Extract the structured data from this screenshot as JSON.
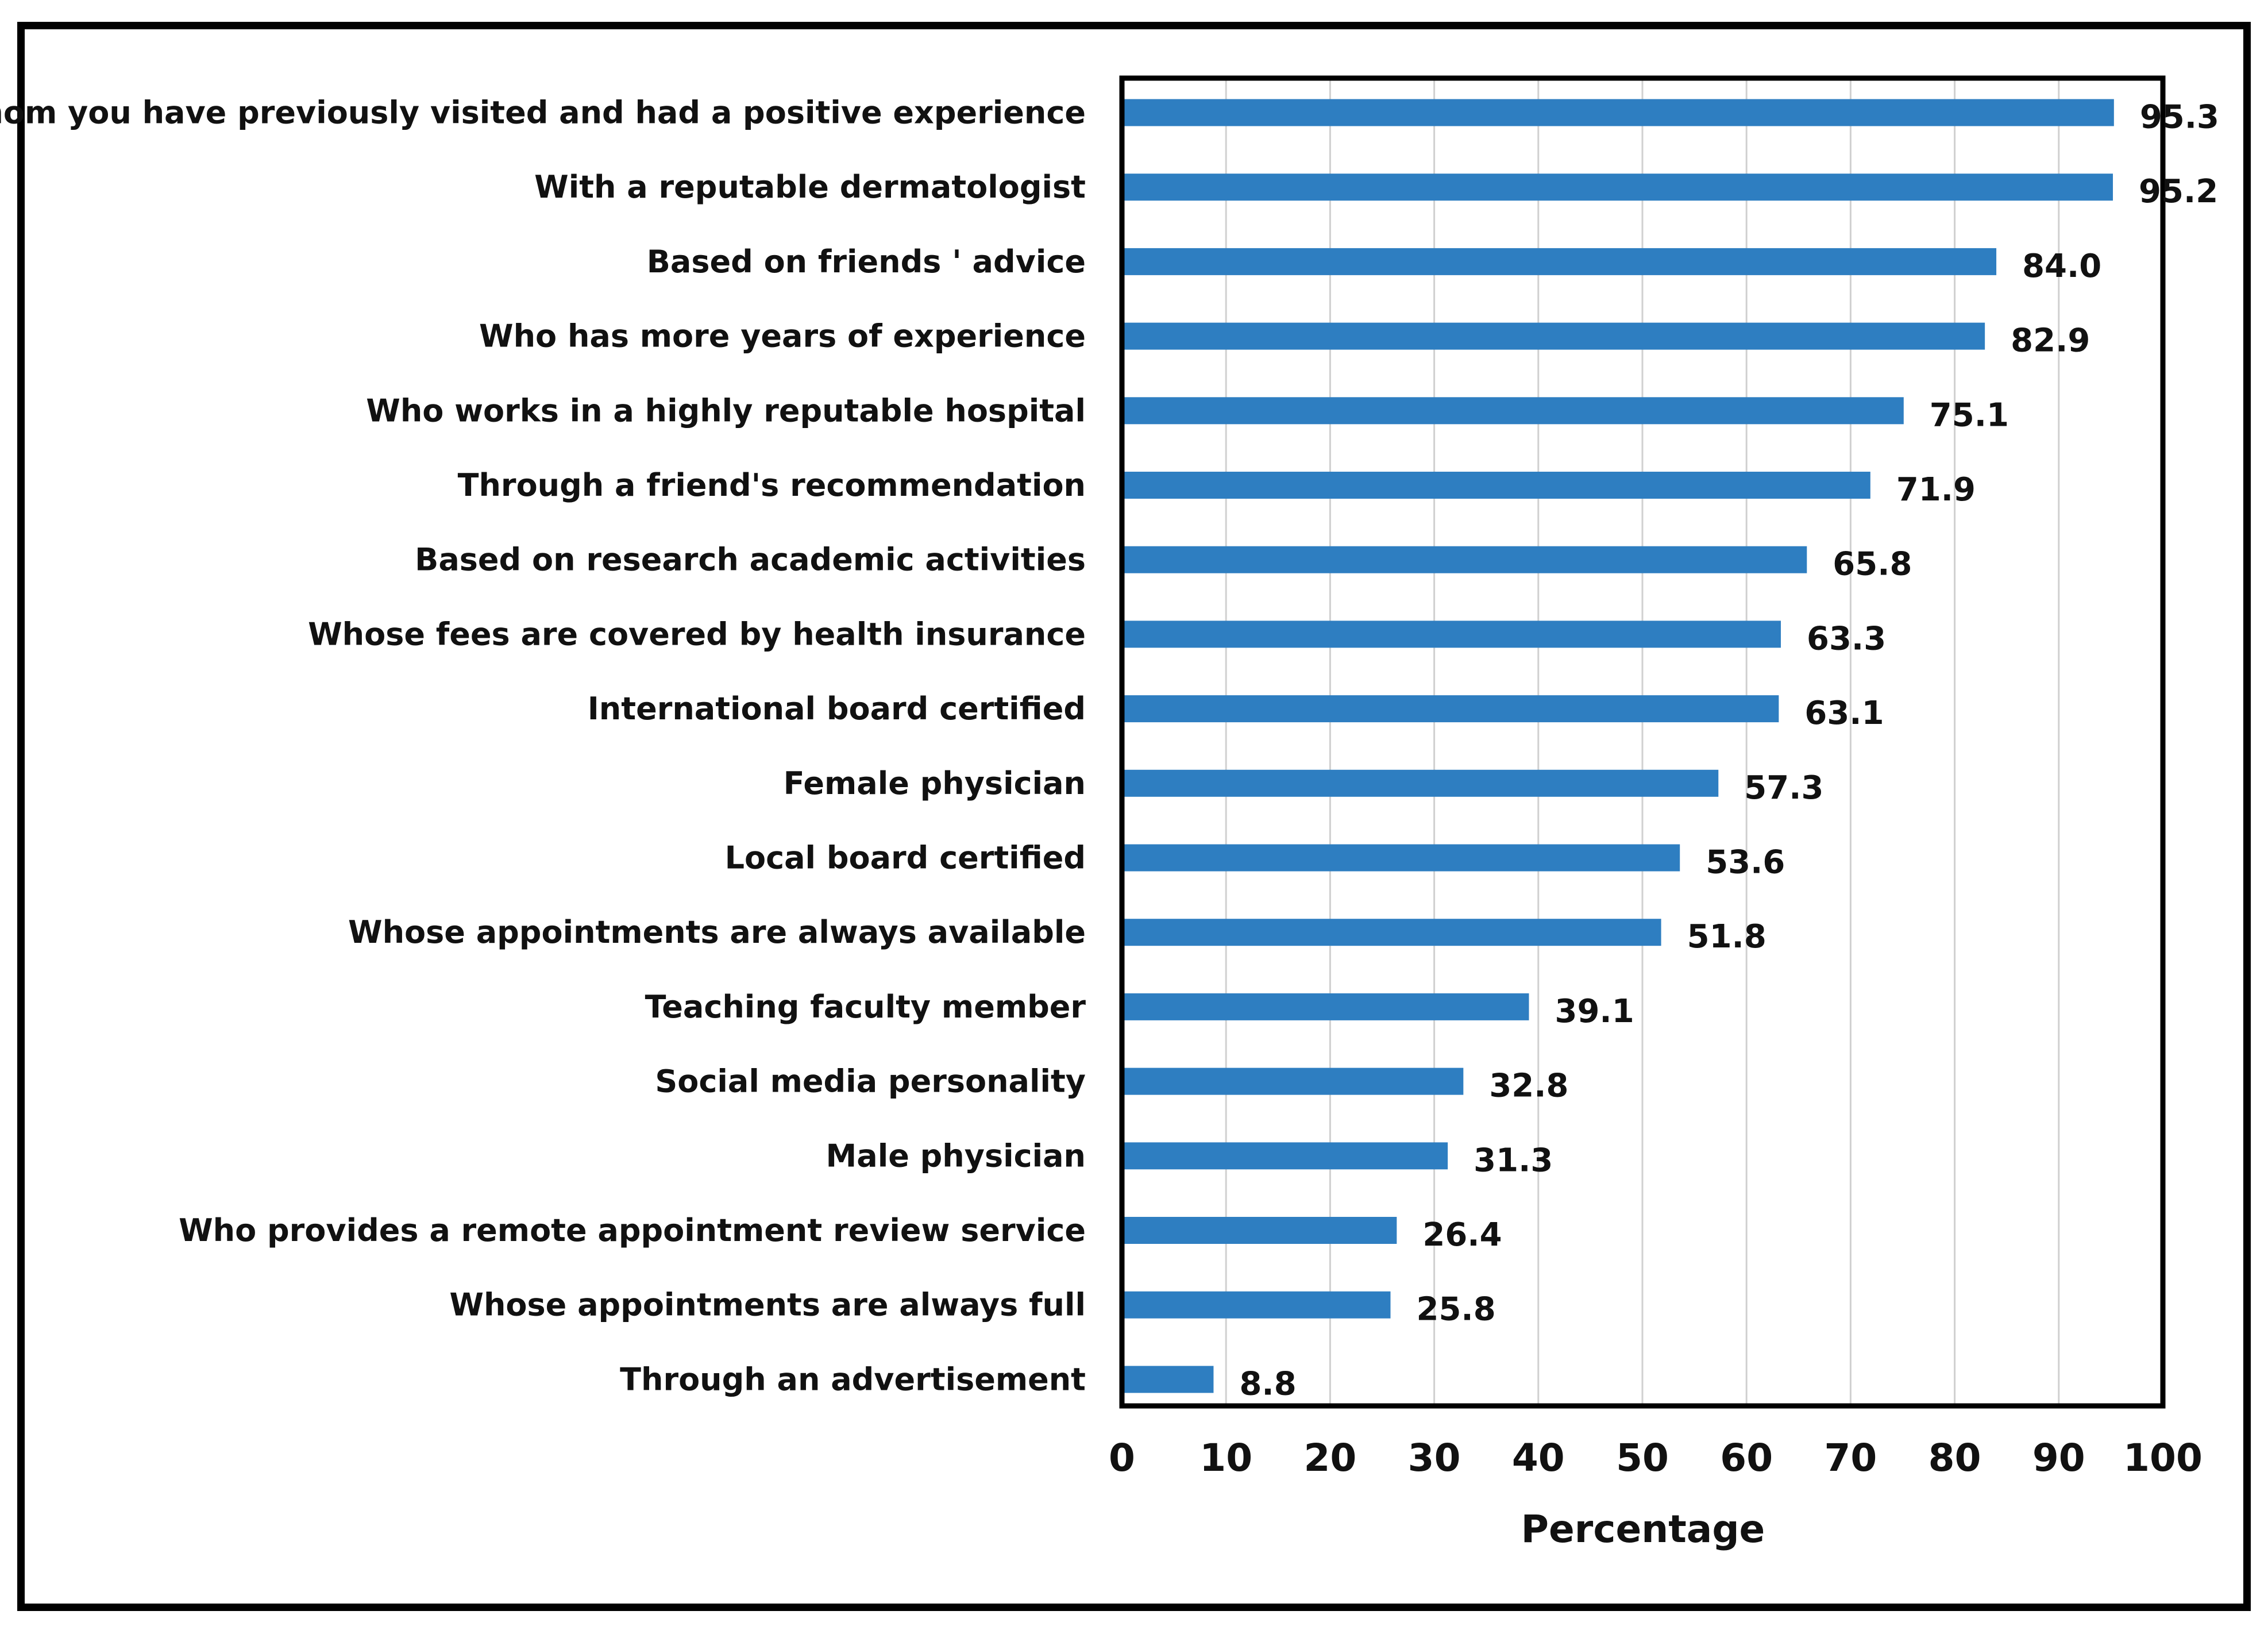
{
  "chart_data": {
    "type": "bar",
    "orientation": "horizontal",
    "title": "",
    "xlabel": "Percentage",
    "ylabel": "",
    "xlim": [
      0,
      100
    ],
    "xticks": [
      0,
      10,
      20,
      30,
      40,
      50,
      60,
      70,
      80,
      90,
      100
    ],
    "grid": "vertical",
    "bar_color": "#2E7EC1",
    "categories": [
      "Whom you have previously visited and had a positive experience",
      "With a reputable dermatologist",
      "Based on friends ' advice",
      "Who has more years of experience",
      "Who works in a highly reputable hospital",
      "Through a friend's recommendation",
      "Based on research academic activities",
      "Whose fees are covered by health insurance",
      "International board certified",
      "Female physician",
      "Local board certified",
      "Whose appointments are always available",
      "Teaching faculty member",
      "Social media personality",
      "Male physician",
      "Who provides a remote appointment review service",
      "Whose appointments are always full",
      "Through an advertisement"
    ],
    "values": [
      95.3,
      95.2,
      84.0,
      82.9,
      75.1,
      71.9,
      65.8,
      63.3,
      63.1,
      57.3,
      53.6,
      51.8,
      39.1,
      32.8,
      31.3,
      26.4,
      25.8,
      8.8
    ],
    "value_labels": [
      "95.3",
      "95.2",
      "84.0",
      "82.9",
      "75.1",
      "71.9",
      "65.8",
      "63.3",
      "63.1",
      "57.3",
      "53.6",
      "51.8",
      "39.1",
      "32.8",
      "31.3",
      "26.4",
      "25.8",
      "8.8"
    ]
  }
}
